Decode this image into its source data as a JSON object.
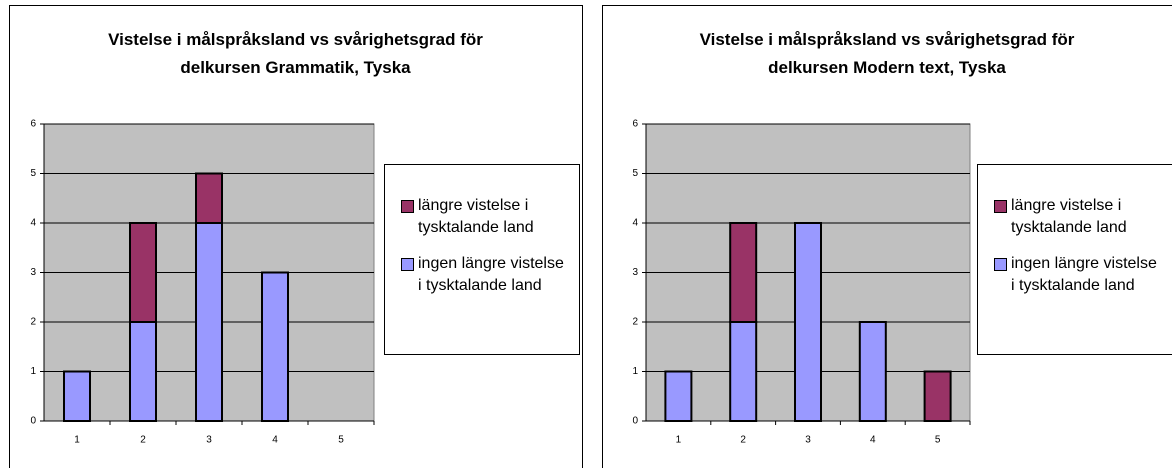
{
  "chart_data": [
    {
      "type": "bar",
      "stacked": true,
      "title": "Vistelse i målspråksland vs svårighetsgrad för delkursen Grammatik, Tyska",
      "categories": [
        "1",
        "2",
        "3",
        "4",
        "5"
      ],
      "series": [
        {
          "name": "ingen längre vistelse i tysktalande land",
          "color": "#9999ff",
          "values": [
            1,
            2,
            4,
            3,
            0
          ]
        },
        {
          "name": "längre vistelse i tysktalande land",
          "color": "#993366",
          "values": [
            0,
            2,
            1,
            0,
            0
          ]
        }
      ],
      "ylim": [
        0,
        6
      ],
      "yticks": [
        0,
        1,
        2,
        3,
        4,
        5,
        6
      ],
      "grid": true,
      "legend": "right"
    },
    {
      "type": "bar",
      "stacked": true,
      "title": "Vistelse i målspråksland vs svårighetsgrad för delkursen Modern text, Tyska",
      "categories": [
        "1",
        "2",
        "3",
        "4",
        "5"
      ],
      "series": [
        {
          "name": "ingen längre vistelse i tysktalande land",
          "color": "#9999ff",
          "values": [
            1,
            2,
            4,
            2,
            0
          ]
        },
        {
          "name": "längre vistelse i tysktalande land",
          "color": "#993366",
          "values": [
            0,
            2,
            0,
            0,
            1
          ]
        }
      ],
      "ylim": [
        0,
        6
      ],
      "yticks": [
        0,
        1,
        2,
        3,
        4,
        5,
        6
      ],
      "grid": true,
      "legend": "right"
    }
  ]
}
